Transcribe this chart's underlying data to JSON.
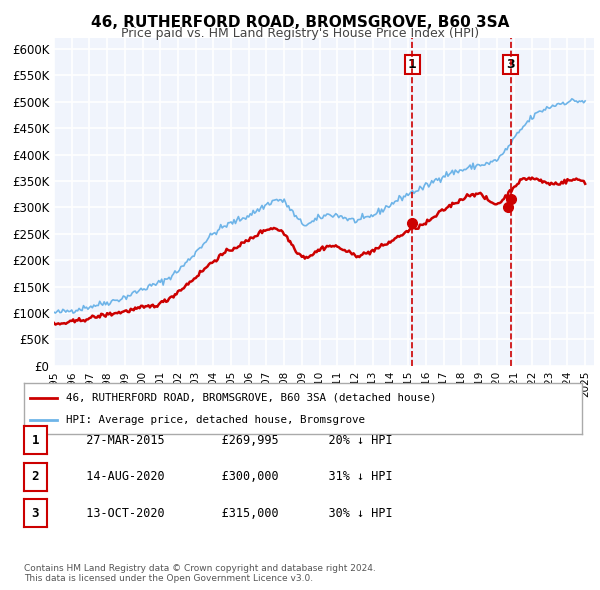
{
  "title": "46, RUTHERFORD ROAD, BROMSGROVE, B60 3SA",
  "subtitle": "Price paid vs. HM Land Registry's House Price Index (HPI)",
  "xlabel": "",
  "ylabel": "",
  "ylim": [
    0,
    620000
  ],
  "yticks": [
    0,
    50000,
    100000,
    150000,
    200000,
    250000,
    300000,
    350000,
    400000,
    450000,
    500000,
    550000,
    600000
  ],
  "ytick_labels": [
    "£0",
    "£50K",
    "£100K",
    "£150K",
    "£200K",
    "£250K",
    "£300K",
    "£350K",
    "£400K",
    "£450K",
    "£500K",
    "£550K",
    "£600K"
  ],
  "xlim_start": 1995.0,
  "xlim_end": 2025.5,
  "xtick_years": [
    1995,
    1996,
    1997,
    1998,
    1999,
    2000,
    2001,
    2002,
    2003,
    2004,
    2005,
    2006,
    2007,
    2008,
    2009,
    2010,
    2011,
    2012,
    2013,
    2014,
    2015,
    2016,
    2017,
    2018,
    2019,
    2020,
    2021,
    2022,
    2023,
    2024,
    2025
  ],
  "hpi_color": "#6eb4e8",
  "price_color": "#cc0000",
  "marker_color": "#cc0000",
  "vline_color": "#cc0000",
  "vline_style": "--",
  "background_color": "#f0f4fc",
  "plot_bg_color": "#f0f4fc",
  "grid_color": "#ffffff",
  "title_fontsize": 11,
  "subtitle_fontsize": 9.5,
  "transactions": [
    {
      "num": 1,
      "date_num": 2015.23,
      "price": 269995,
      "label": "1",
      "vline": true
    },
    {
      "num": 2,
      "date_num": 2020.62,
      "price": 300000,
      "label": "2",
      "vline": false
    },
    {
      "num": 3,
      "date_num": 2020.79,
      "price": 315000,
      "label": "3",
      "vline": true
    }
  ],
  "legend_entries": [
    "46, RUTHERFORD ROAD, BROMSGROVE, B60 3SA (detached house)",
    "HPI: Average price, detached house, Bromsgrove"
  ],
  "table_rows": [
    {
      "num": "1",
      "date": "27-MAR-2015",
      "price": "£269,995",
      "hpi": "20% ↓ HPI"
    },
    {
      "num": "2",
      "date": "14-AUG-2020",
      "price": "£300,000",
      "hpi": "31% ↓ HPI"
    },
    {
      "num": "3",
      "date": "13-OCT-2020",
      "price": "£315,000",
      "hpi": "30% ↓ HPI"
    }
  ],
  "footnote": "Contains HM Land Registry data © Crown copyright and database right 2024.\nThis data is licensed under the Open Government Licence v3.0."
}
